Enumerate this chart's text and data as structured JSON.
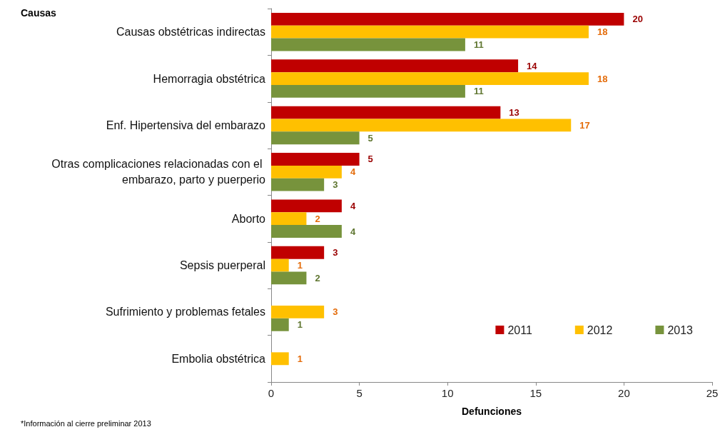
{
  "chart_data": {
    "type": "bar",
    "orientation": "horizontal",
    "ylabel": "Causas",
    "xlabel": "Defunciones",
    "categories": [
      "Causas obstétricas indirectas",
      "Hemorragia obstétrica",
      "Enf. Hipertensiva del embarazo",
      "Otras complicaciones relacionadas con el embarazo, parto y puerperio",
      "Aborto",
      "Sepsis puerperal",
      "Sufrimiento y problemas fetales",
      "Embolia obstétrica"
    ],
    "series": [
      {
        "name": "2011",
        "color": "#c00000",
        "values": [
          20,
          14,
          13,
          5,
          4,
          3,
          null,
          null
        ]
      },
      {
        "name": "2012",
        "color": "#ffc000",
        "values": [
          18,
          18,
          17,
          4,
          2,
          1,
          3,
          1
        ]
      },
      {
        "name": "2013",
        "color": "#77933c",
        "values": [
          11,
          11,
          5,
          3,
          4,
          2,
          1,
          null
        ]
      }
    ],
    "xlim": [
      0,
      25
    ],
    "xticks": [
      0,
      5,
      10,
      15,
      20,
      25
    ],
    "grid": false,
    "legend": "bottom right",
    "data_labels": true,
    "annotations": [
      "*Información al cierre preliminar 2013"
    ]
  }
}
